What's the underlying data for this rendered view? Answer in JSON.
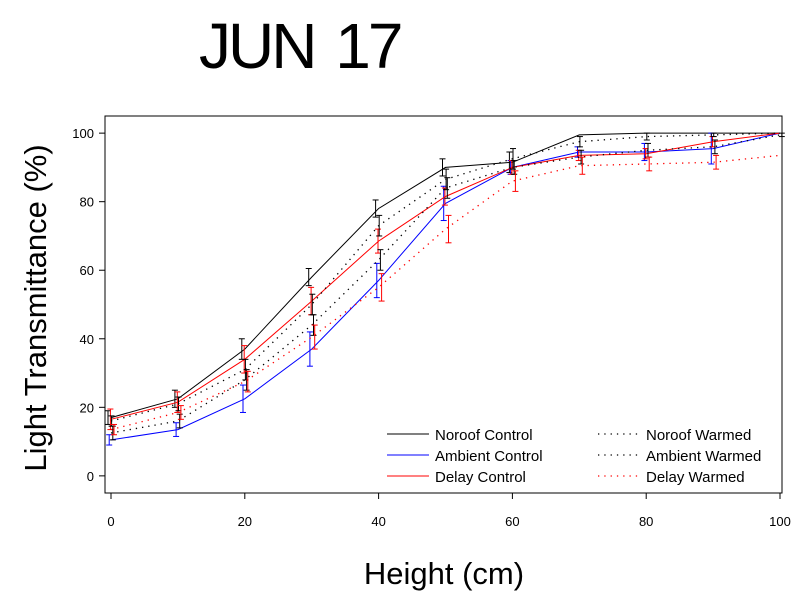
{
  "chart_data": {
    "type": "line",
    "title": "JUN 17",
    "xlabel": "Height (cm)",
    "ylabel": "Light Transmittance (%)",
    "xlim": [
      0,
      100
    ],
    "ylim": [
      -5,
      105
    ],
    "xticks": [
      0,
      20,
      40,
      60,
      80,
      100
    ],
    "yticks": [
      0,
      20,
      40,
      60,
      80,
      100
    ],
    "grid": false,
    "legend_position": "bottom-right",
    "x": [
      0,
      10,
      20,
      30,
      40,
      50,
      60,
      70,
      80,
      90,
      100
    ],
    "series": [
      {
        "name": "Noroof Control",
        "color": "#000000",
        "style": "solid",
        "values": [
          17,
          22.5,
          37,
          58,
          78,
          90,
          91.5,
          99.5,
          100,
          100,
          100
        ],
        "error": [
          2,
          2.5,
          3,
          2.5,
          2.5,
          2.5,
          3,
          0,
          0,
          0,
          0
        ]
      },
      {
        "name": "Ambient Control",
        "color": "#0000ff",
        "style": "solid",
        "values": [
          10.5,
          13.5,
          22.5,
          37,
          57,
          79.5,
          90,
          94.5,
          94.5,
          95.5,
          100
        ],
        "error": [
          1.5,
          2,
          4,
          5,
          5,
          5,
          2,
          1.5,
          2.5,
          4.5,
          0
        ]
      },
      {
        "name": "Delay Control",
        "color": "#ff0000",
        "style": "solid",
        "values": [
          16.5,
          21.5,
          34,
          51,
          68.5,
          81.5,
          90,
          93.5,
          94,
          97.5,
          100
        ],
        "error": [
          3,
          3,
          4,
          4,
          3.5,
          2.5,
          2,
          1.5,
          1.5,
          1.5,
          0
        ]
      },
      {
        "name": "Noroof Warmed",
        "color": "#000000",
        "style": "dotted",
        "values": [
          16,
          21,
          31,
          50,
          73,
          86.5,
          92.5,
          97.5,
          99,
          99.5,
          100
        ],
        "error": [
          1.5,
          2,
          3,
          3,
          3,
          3,
          3,
          1.5,
          1,
          0.5,
          0
        ]
      },
      {
        "name": "Ambient Warmed",
        "color": "#000000",
        "style": "dotted",
        "values": [
          12.5,
          16,
          28,
          44,
          63,
          84,
          90,
          93,
          95,
          96,
          99.5
        ],
        "error": [
          2,
          2,
          3,
          3,
          3,
          3,
          2,
          2,
          2,
          2,
          0.5
        ]
      },
      {
        "name": "Delay Warmed",
        "color": "#ff0000",
        "style": "dotted",
        "values": [
          13.5,
          18.5,
          27.5,
          40.5,
          55,
          72,
          86,
          90.5,
          91,
          91.5,
          93.5
        ],
        "error": [
          1.5,
          2,
          3,
          3.5,
          4,
          4,
          3,
          2.5,
          2,
          2,
          0
        ]
      }
    ]
  }
}
